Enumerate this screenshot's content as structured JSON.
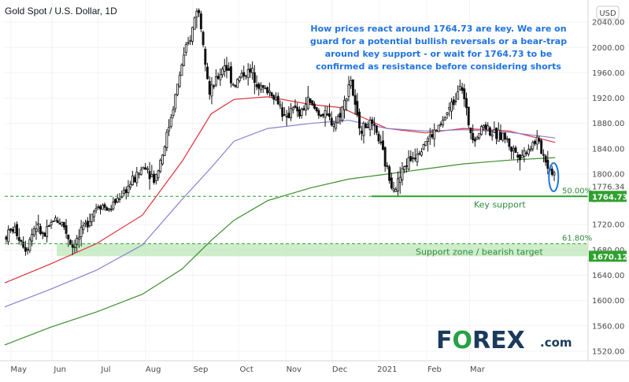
{
  "header": {
    "title": "Gold Spot / U.S. Dollar, 1D",
    "currency": "USD"
  },
  "annotation": {
    "lines": [
      "How prices react around 1764.73 are key. We are on",
      "guard for a potential bullish reversals or a bear-trap",
      "around key support - or wait for 1764.73 to be",
      "confirmed as resistance before considering shorts"
    ]
  },
  "levels": {
    "key_support": {
      "label": "Key support",
      "price_label": "1764.73"
    },
    "support_zone": {
      "label": "Support zone / bearish target",
      "price_label": "1670.12"
    },
    "fib_50": "50.00%",
    "fib_618": "61.80%",
    "partial_label": "1776.34"
  },
  "brand": {
    "name": "FOREX",
    "domain": ".com"
  },
  "colors": {
    "up_candle": "#ffffff",
    "down_candle": "#111111",
    "ma_short": "#e0303a",
    "ma_mid": "#8a7fd0",
    "ma_long": "#3e8e2e",
    "support_green": "#2fa12f",
    "zone_fill": "#b9e6b3",
    "annotation": "#1f73e0",
    "brand_green": "#27a146",
    "brand_navy": "#1b3a5c"
  },
  "chart_data": {
    "type": "candlestick",
    "title": "Gold Spot / U.S. Dollar, 1D",
    "y_ticks": [
      1520,
      1560,
      1600,
      1640,
      1680,
      1720,
      1760,
      1800,
      1840,
      1880,
      1920,
      1960,
      2000,
      2040
    ],
    "y_tick_labels": [
      "1520.00",
      "1560.00",
      "1600.00",
      "1640.00",
      "1680.00",
      "1720.00",
      "1760.00",
      "1800.00",
      "1840.00",
      "1880.00",
      "1920.00",
      "1960.00",
      "2000.00",
      "2040.00"
    ],
    "x_labels": [
      "May",
      "Jun",
      "Jul",
      "Aug",
      "Sep",
      "Oct",
      "Nov",
      "Dec",
      "2021",
      "Feb",
      "Mar"
    ],
    "ylim": [
      1505,
      2075
    ],
    "close_path": [
      [
        0,
        1700
      ],
      [
        6,
        1715
      ],
      [
        14,
        1682
      ],
      [
        20,
        1720
      ],
      [
        26,
        1700
      ],
      [
        32,
        1730
      ],
      [
        38,
        1722
      ],
      [
        44,
        1685
      ],
      [
        50,
        1705
      ],
      [
        56,
        1735
      ],
      [
        62,
        1755
      ],
      [
        68,
        1742
      ],
      [
        74,
        1762
      ],
      [
        80,
        1778
      ],
      [
        86,
        1796
      ],
      [
        92,
        1815
      ],
      [
        98,
        1790
      ],
      [
        104,
        1840
      ],
      [
        110,
        1905
      ],
      [
        116,
        1975
      ],
      [
        122,
        2020
      ],
      [
        126,
        2068
      ],
      [
        130,
        2010
      ],
      [
        134,
        1925
      ],
      [
        138,
        1945
      ],
      [
        144,
        1975
      ],
      [
        150,
        1940
      ],
      [
        156,
        1960
      ],
      [
        162,
        1960
      ],
      [
        168,
        1935
      ],
      [
        174,
        1930
      ],
      [
        180,
        1910
      ],
      [
        184,
        1880
      ],
      [
        188,
        1912
      ],
      [
        192,
        1890
      ],
      [
        198,
        1915
      ],
      [
        204,
        1900
      ],
      [
        210,
        1890
      ],
      [
        216,
        1880
      ],
      [
        222,
        1910
      ],
      [
        226,
        1955
      ],
      [
        230,
        1890
      ],
      [
        234,
        1870
      ],
      [
        238,
        1880
      ],
      [
        244,
        1860
      ],
      [
        248,
        1825
      ],
      [
        252,
        1790
      ],
      [
        256,
        1780
      ],
      [
        262,
        1815
      ],
      [
        268,
        1830
      ],
      [
        274,
        1850
      ],
      [
        280,
        1862
      ],
      [
        286,
        1880
      ],
      [
        290,
        1900
      ],
      [
        294,
        1915
      ],
      [
        298,
        1950
      ],
      [
        304,
        1872
      ],
      [
        308,
        1858
      ],
      [
        314,
        1880
      ],
      [
        320,
        1860
      ],
      [
        326,
        1862
      ],
      [
        332,
        1838
      ],
      [
        338,
        1830
      ],
      [
        342,
        1840
      ],
      [
        348,
        1855
      ],
      [
        352,
        1832
      ],
      [
        356,
        1810
      ],
      [
        360,
        1800
      ]
    ],
    "series": [
      {
        "name": "MA short",
        "values": [
          [
            0,
            1628
          ],
          [
            30,
            1658
          ],
          [
            60,
            1690
          ],
          [
            90,
            1735
          ],
          [
            116,
            1820
          ],
          [
            135,
            1895
          ],
          [
            150,
            1918
          ],
          [
            172,
            1922
          ],
          [
            200,
            1910
          ],
          [
            220,
            1905
          ],
          [
            250,
            1872
          ],
          [
            275,
            1865
          ],
          [
            300,
            1872
          ],
          [
            330,
            1868
          ],
          [
            360,
            1850
          ]
        ]
      },
      {
        "name": "MA mid",
        "values": [
          [
            0,
            1590
          ],
          [
            30,
            1618
          ],
          [
            60,
            1648
          ],
          [
            90,
            1688
          ],
          [
            116,
            1760
          ],
          [
            135,
            1810
          ],
          [
            150,
            1852
          ],
          [
            172,
            1872
          ],
          [
            200,
            1880
          ],
          [
            225,
            1885
          ],
          [
            250,
            1872
          ],
          [
            275,
            1868
          ],
          [
            300,
            1870
          ],
          [
            330,
            1866
          ],
          [
            360,
            1857
          ]
        ]
      },
      {
        "name": "MA long",
        "values": [
          [
            0,
            1530
          ],
          [
            30,
            1558
          ],
          [
            60,
            1582
          ],
          [
            90,
            1610
          ],
          [
            116,
            1650
          ],
          [
            135,
            1695
          ],
          [
            150,
            1727
          ],
          [
            172,
            1758
          ],
          [
            200,
            1778
          ],
          [
            225,
            1792
          ],
          [
            250,
            1800
          ],
          [
            275,
            1808
          ],
          [
            300,
            1816
          ],
          [
            330,
            1822
          ],
          [
            360,
            1826
          ]
        ]
      }
    ],
    "key_support": 1764.73,
    "support_zone": [
      1670.12,
      1690
    ],
    "fib_50": 1764.73,
    "fib_618": 1690
  }
}
